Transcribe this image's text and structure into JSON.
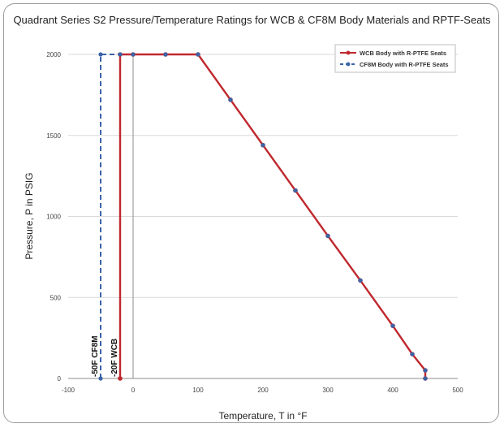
{
  "colors": {
    "wcb": "#c0282d",
    "cf8m": "#3a64a8",
    "grid": "#d9d9d9",
    "axis": "#8c8c8c"
  },
  "chart_data": {
    "type": "line",
    "title": "Quadrant Series S2 Pressure/Temperature Ratings for WCB & CF8M Body Materials and RPTF-Seats",
    "xlabel": "Temperature, T in °F",
    "ylabel": "Pressure, P in PSIG",
    "xlim": [
      -100,
      500
    ],
    "ylim": [
      0,
      2000
    ],
    "xticks": [
      -100,
      0,
      100,
      200,
      300,
      400,
      500
    ],
    "xtick_labels": [
      "-100",
      "0",
      "100",
      "200",
      "300",
      "400",
      "500"
    ],
    "yticks": [
      0,
      500,
      1000,
      1500,
      2000
    ],
    "ytick_labels": [
      "0",
      "500",
      "1000",
      "1500",
      "2000"
    ],
    "grid": "horizontal",
    "legend_position": "top-right",
    "series": [
      {
        "name": "WCB Body with R-PTFE Seats",
        "style": "solid",
        "x": [
          -20,
          -20,
          0,
          50,
          100,
          150,
          200,
          250,
          300,
          350,
          400,
          430,
          450,
          450
        ],
        "y": [
          0,
          2000,
          2000,
          2000,
          2000,
          1720,
          1440,
          1160,
          880,
          605,
          325,
          150,
          50,
          0
        ]
      },
      {
        "name": "CF8M Body with R-PTFE Seats",
        "style": "dashed",
        "x": [
          -50,
          -50,
          -20,
          0,
          50,
          100,
          150,
          200,
          250,
          300,
          350,
          400,
          430,
          450,
          450
        ],
        "y": [
          0,
          2000,
          2000,
          2000,
          2000,
          2000,
          1720,
          1440,
          1160,
          880,
          605,
          325,
          150,
          50,
          0
        ]
      }
    ],
    "annotations": [
      {
        "text": "-50F CF8M",
        "x": -50
      },
      {
        "text": "-20F WCB",
        "x": -20
      }
    ]
  }
}
